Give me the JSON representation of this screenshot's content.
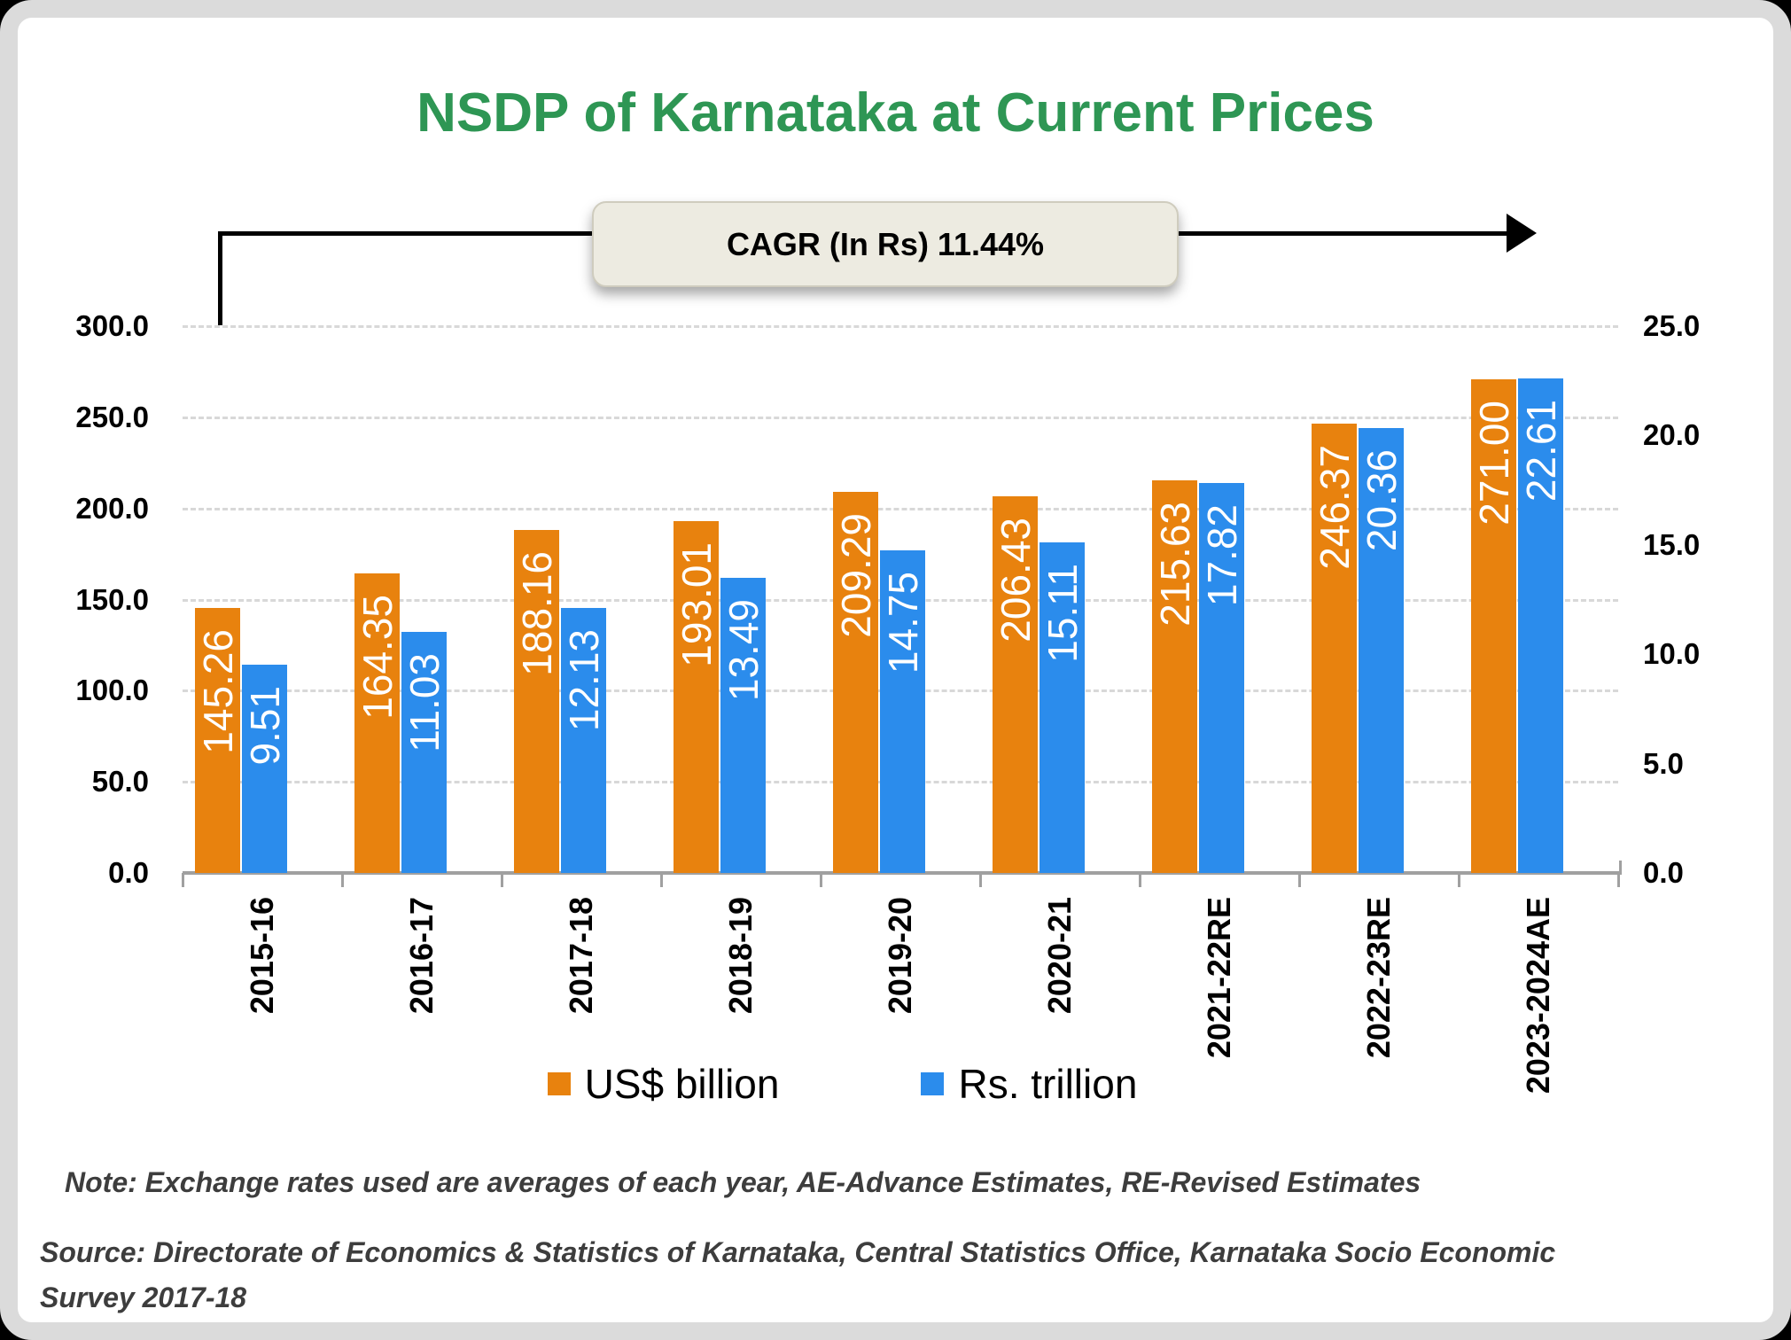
{
  "title": "NSDP of Karnataka at Current Prices",
  "cagr": {
    "label": "CAGR (In Rs) 11.44%"
  },
  "legend": {
    "items": [
      {
        "label": "US$ billion",
        "color": "#E8820E"
      },
      {
        "label": "Rs. trillion",
        "color": "#2B8CEC"
      }
    ]
  },
  "footnotes": {
    "note": "Note: Exchange rates used are averages of each year, AE-Advance Estimates, RE-Revised Estimates",
    "source": "Source: Directorate of Economics & Statistics of Karnataka, Central Statistics Office, Karnataka Socio Economic Survey 2017-18"
  },
  "colors": {
    "title_green": "#2E9654",
    "us_billion_orange": "#E8820E",
    "rs_trillion_blue": "#2B8CEC",
    "card_border_gray": "#DBDBDB",
    "callout_cream": "#EDEBE1",
    "gridline_gray": "#D8D8D8",
    "axis_gray": "#A0A0A0"
  },
  "chart_data": {
    "type": "bar",
    "title": "NSDP of Karnataka at Current Prices",
    "categories": [
      "2015-16",
      "2016-17",
      "2017-18",
      "2018-19",
      "2019-20",
      "2020-21",
      "2021-22RE",
      "2022-23RE",
      "2023-2024AE"
    ],
    "series": [
      {
        "name": "US$ billion",
        "axis": "left",
        "color": "#E8820E",
        "values": [
          145.26,
          164.35,
          188.16,
          193.01,
          209.29,
          206.43,
          215.63,
          246.37,
          271.0
        ],
        "value_labels": [
          "145.26",
          "164.35",
          "188.16",
          "193.01",
          "209.29",
          "206.43",
          "215.63",
          "246.37",
          "271.00"
        ]
      },
      {
        "name": "Rs. trillion",
        "axis": "right",
        "color": "#2B8CEC",
        "values": [
          9.51,
          11.03,
          12.13,
          13.49,
          14.75,
          15.11,
          17.82,
          20.36,
          22.61
        ],
        "value_labels": [
          "9.51",
          "11.03",
          "12.13",
          "13.49",
          "14.75",
          "15.11",
          "17.82",
          "20.36",
          "22.61"
        ]
      }
    ],
    "left_axis": {
      "min": 0,
      "max": 300,
      "step": 50,
      "tick_labels": [
        "0.0",
        "50.0",
        "100.0",
        "150.0",
        "200.0",
        "250.0",
        "300.0"
      ]
    },
    "right_axis": {
      "min": 0,
      "max": 25,
      "step": 5,
      "tick_labels": [
        "0.0",
        "5.0",
        "10.0",
        "15.0",
        "20.0",
        "25.0"
      ]
    },
    "grid": true,
    "legend_position": "bottom",
    "annotation": "CAGR (In Rs) 11.44%"
  }
}
